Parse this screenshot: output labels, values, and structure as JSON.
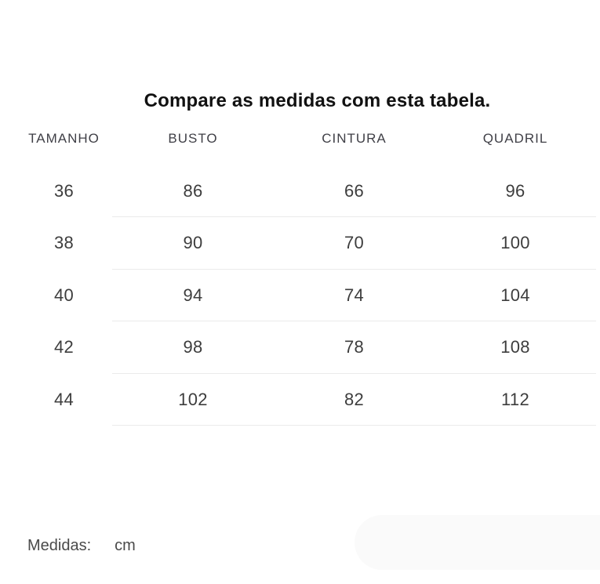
{
  "title": "Compare as medidas com esta tabela.",
  "table": {
    "headers": [
      "TAMANHO",
      "BUSTO",
      "CINTURA",
      "QUADRIL"
    ],
    "rows": [
      [
        "36",
        "86",
        "66",
        "96"
      ],
      [
        "38",
        "90",
        "70",
        "100"
      ],
      [
        "40",
        "94",
        "74",
        "104"
      ],
      [
        "42",
        "98",
        "78",
        "108"
      ],
      [
        "44",
        "102",
        "82",
        "112"
      ]
    ]
  },
  "footer": {
    "label": "Medidas:",
    "unit": "cm"
  },
  "colors": {
    "title_text": "#111111",
    "header_text": "#3f3f46",
    "cell_text": "#3d3d3d",
    "divider": "#ebebeb",
    "footer_text": "#4a4a4a",
    "pill_background": "#fafafa"
  }
}
